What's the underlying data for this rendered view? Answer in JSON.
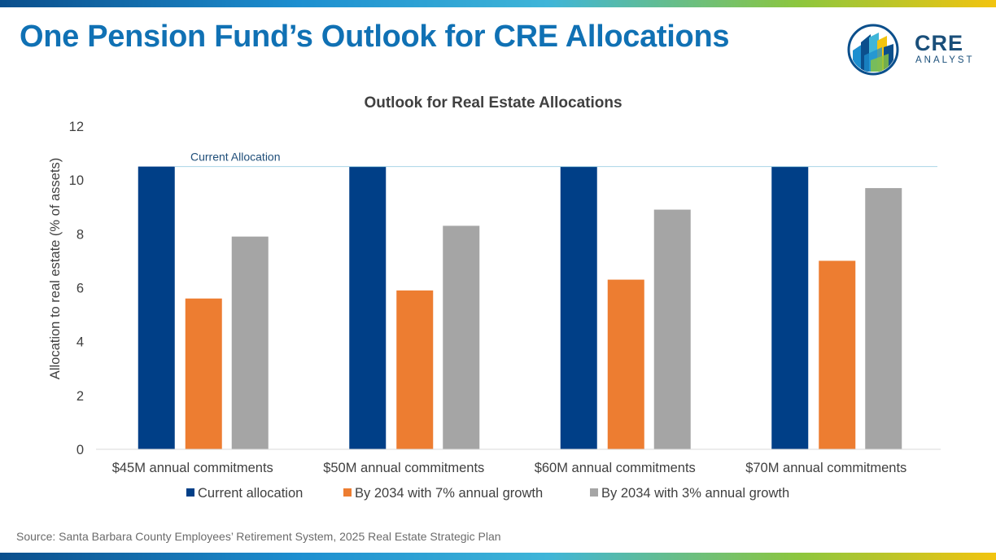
{
  "header": {
    "title": "One Pension Fund’s Outlook for CRE Allocations"
  },
  "logo": {
    "main_text": "CRE",
    "sub_text": "ANALYST"
  },
  "chart_data": {
    "type": "bar",
    "title": "Outlook for Real Estate Allocations",
    "xlabel": "",
    "ylabel": "Allocation to real estate (% of assets)",
    "ylim": [
      0,
      12
    ],
    "yticks": [
      0,
      2,
      4,
      6,
      8,
      10,
      12
    ],
    "categories": [
      "$45M annual commitments",
      "$50M annual commitments",
      "$60M annual commitments",
      "$70M annual commitments"
    ],
    "series": [
      {
        "name": "Current allocation",
        "color": "#003f87",
        "values": [
          10.5,
          10.5,
          10.5,
          10.5
        ]
      },
      {
        "name": "By 2034 with 7% annual growth",
        "color": "#ed7d31",
        "values": [
          5.6,
          5.9,
          6.3,
          7.0
        ]
      },
      {
        "name": "By 2034 with 3% annual growth",
        "color": "#a5a5a5",
        "values": [
          7.9,
          8.3,
          8.9,
          9.7
        ]
      }
    ],
    "reference_line": {
      "label": "Current Allocation",
      "value": 10.5,
      "color": "#1f4e79"
    },
    "legend": "bottom",
    "grid": false
  },
  "footer": {
    "source": "Source: Santa Barbara County Employees’ Retirement System, 2025 Real Estate Strategic Plan"
  }
}
